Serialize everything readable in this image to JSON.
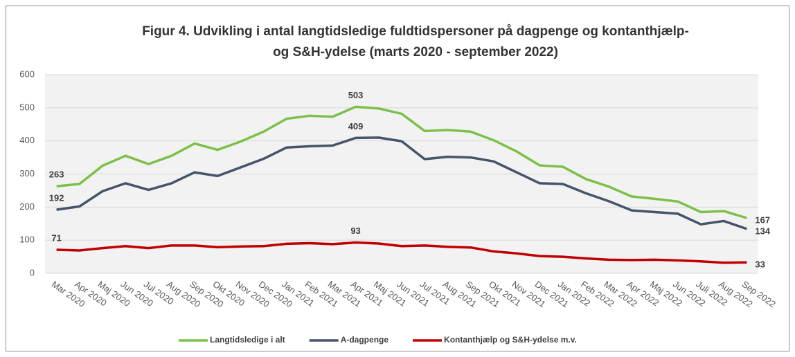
{
  "chart_data": {
    "type": "line",
    "title": [
      "Figur 4. Udvikling i antal langtidsledige fuldtidspersoner på dagpenge og kontanthjælp-",
      "og S&H-ydelse (marts 2020 - september 2022)"
    ],
    "categories": [
      "Mar 2020",
      "Apr 2020",
      "Maj 2020",
      "Jun 2020",
      "Jul 2020",
      "Aug 2020",
      "Sep 2020",
      "Okt 2020",
      "Nov 2020",
      "Dec 2020",
      "Jan 2021",
      "Feb 2021",
      "Mar 2021",
      "Apr 2021",
      "Maj 2021",
      "Jun 2021",
      "Jul 2021",
      "Aug 2021",
      "Sep 2021",
      "Okt 2021",
      "Nov 2021",
      "Dec 2021",
      "Jan 2022",
      "Feb 2022",
      "Mar 2022",
      "Apr 2022",
      "Maj 2022",
      "Jun 2022",
      "Juli 2022",
      "Aug 2022",
      "Sep 2022"
    ],
    "series": [
      {
        "name": "Langtidsledige i alt",
        "color": "#7cc04a",
        "values": [
          263,
          270,
          325,
          355,
          330,
          355,
          392,
          373,
          398,
          428,
          467,
          476,
          473,
          503,
          498,
          482,
          430,
          433,
          428,
          402,
          368,
          326,
          322,
          285,
          262,
          232,
          225,
          217,
          185,
          188,
          167
        ],
        "value_labels": [
          "263",
          null,
          null,
          null,
          null,
          null,
          null,
          null,
          null,
          null,
          null,
          null,
          null,
          "503",
          null,
          null,
          null,
          null,
          null,
          null,
          null,
          null,
          null,
          null,
          null,
          null,
          null,
          null,
          null,
          null,
          "167"
        ]
      },
      {
        "name": "A-dagpenge",
        "color": "#44546a",
        "values": [
          192,
          202,
          248,
          272,
          252,
          272,
          305,
          294,
          320,
          346,
          380,
          384,
          386,
          409,
          410,
          399,
          345,
          352,
          350,
          338,
          305,
          272,
          270,
          242,
          218,
          190,
          185,
          180,
          148,
          158,
          134
        ],
        "value_labels": [
          "192",
          null,
          null,
          null,
          null,
          null,
          null,
          null,
          null,
          null,
          null,
          null,
          null,
          "409",
          null,
          null,
          null,
          null,
          null,
          null,
          null,
          null,
          null,
          null,
          null,
          null,
          null,
          null,
          null,
          null,
          "134"
        ]
      },
      {
        "name": "Kontanthjælp og S&H-ydelse m.v.",
        "color": "#c00000",
        "values": [
          71,
          69,
          76,
          82,
          76,
          84,
          84,
          79,
          81,
          82,
          89,
          91,
          88,
          93,
          90,
          82,
          84,
          80,
          78,
          66,
          60,
          52,
          50,
          45,
          41,
          40,
          41,
          39,
          36,
          32,
          33
        ],
        "value_labels": [
          "71",
          null,
          null,
          null,
          null,
          null,
          null,
          null,
          null,
          null,
          null,
          null,
          null,
          "93",
          null,
          null,
          null,
          null,
          null,
          null,
          null,
          null,
          null,
          null,
          null,
          null,
          null,
          null,
          null,
          null,
          "33"
        ]
      }
    ],
    "ylim": [
      0,
      600
    ],
    "yticks": [
      0,
      100,
      200,
      300,
      400,
      500,
      600
    ],
    "grid": true,
    "legend": "bottom"
  }
}
